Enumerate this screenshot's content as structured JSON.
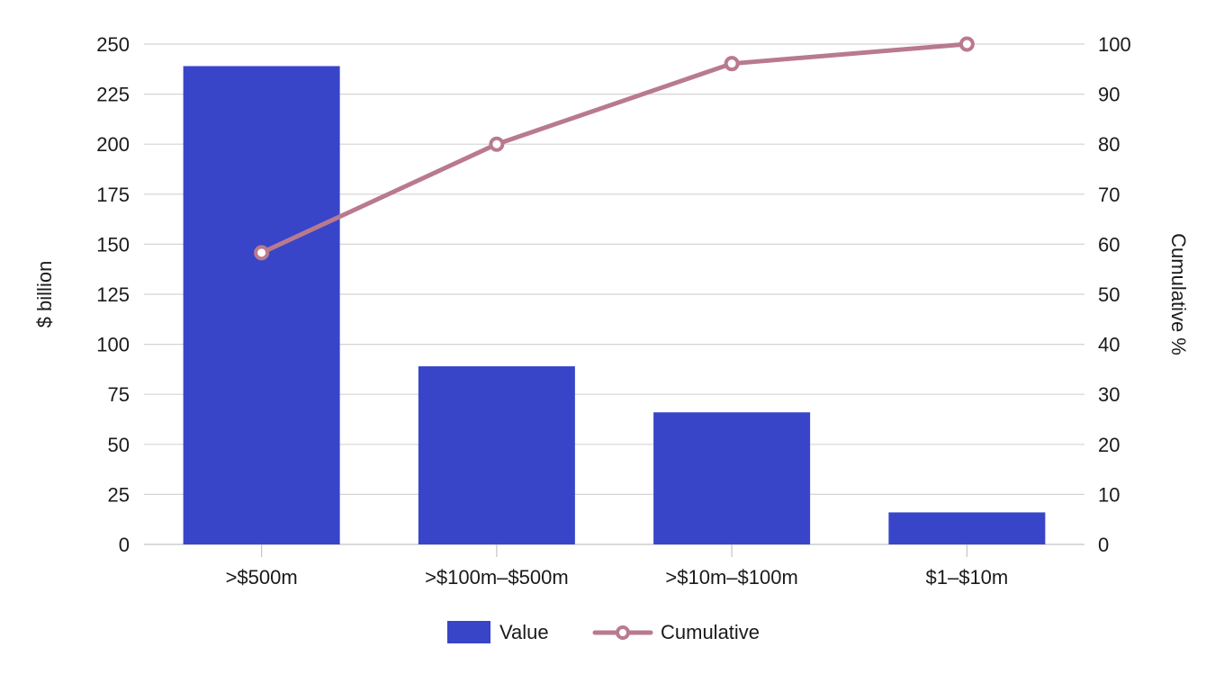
{
  "chart_data": {
    "type": "bar",
    "combo": "bar+line (pareto)",
    "title": "",
    "categories": [
      ">$500m",
      ">$100m–$500m",
      ">$10m–$100m",
      "$1–$10m"
    ],
    "series": [
      {
        "name": "Value",
        "type": "bar",
        "axis": "left",
        "color": "#3845C8",
        "values": [
          239,
          89,
          66,
          16
        ]
      },
      {
        "name": "Cumulative",
        "type": "line",
        "axis": "right",
        "color": "#B97A8E",
        "marker": "hollow-circle",
        "values": [
          58.3,
          80.0,
          96.1,
          100
        ]
      }
    ],
    "xlabel": "",
    "ylabel": "$ billion",
    "y2label": "Cumulative %",
    "ylim": [
      0,
      250
    ],
    "y2lim": [
      0,
      100
    ],
    "yticks": [
      0,
      25,
      50,
      75,
      100,
      125,
      150,
      175,
      200,
      225,
      250
    ],
    "y2ticks": [
      0,
      10,
      20,
      30,
      40,
      50,
      60,
      70,
      80,
      90,
      100
    ],
    "grid": true,
    "legend_position": "bottom"
  },
  "legend": {
    "items": [
      {
        "label": "Value",
        "swatch": "bar"
      },
      {
        "label": "Cumulative",
        "swatch": "line-marker"
      }
    ]
  },
  "colors": {
    "bar": "#3845C8",
    "line": "#B97A8E",
    "grid": "#d4d4d4",
    "text": "#1a1a1a"
  }
}
